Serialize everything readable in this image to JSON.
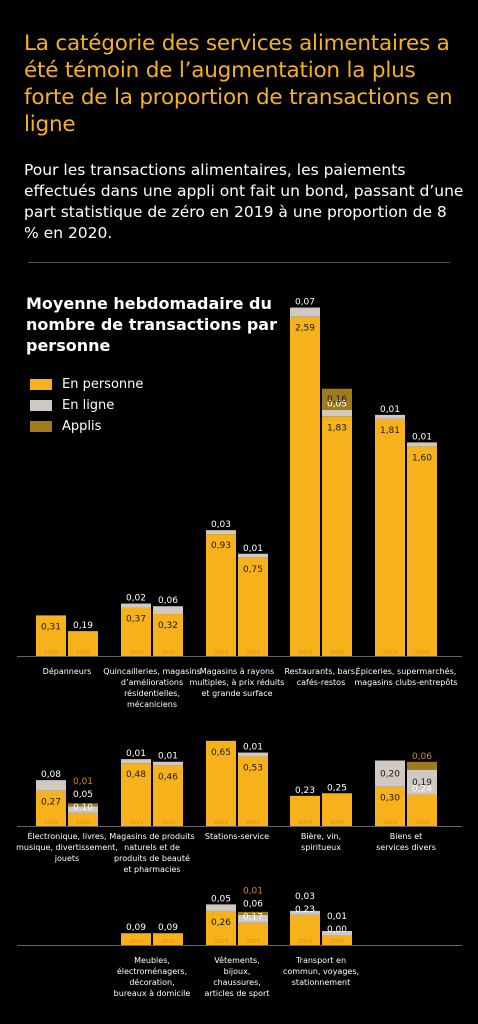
{
  "header": {
    "title": "La catégorie des services alimentaires a été témoin de l’augmentation la plus forte de la proportion de transactions en ligne",
    "subtitle": "Pour les transactions alimentaires, les paiements effectués dans une appli ont fait un bond, passant d’une part statistique de zéro en 2019 à une proportion de 8 % en 2020."
  },
  "colors": {
    "in_person": "#f7b21b",
    "online": "#cfc9c2",
    "apps": "#a17a1e",
    "year_label": "#d98d0f",
    "axis": "#666666"
  },
  "chart_data": {
    "type": "bar",
    "stacked": true,
    "title": "Moyenne hebdomadaire du nombre de transactions par personne",
    "legend": [
      {
        "key": "in_person",
        "label": "En personne"
      },
      {
        "key": "online",
        "label": "En ligne"
      },
      {
        "key": "apps",
        "label": "Applis"
      }
    ],
    "years": [
      "2019",
      "2020"
    ],
    "categories": [
      {
        "label": "Dépanneurs",
        "bars": [
          {
            "in_person": 0.31,
            "online": null,
            "apps": null
          },
          {
            "in_person": 0.19,
            "online": null,
            "apps": null
          }
        ]
      },
      {
        "label": "Quincailleries, magasins d’améliorations résidentielles, mécaniciens",
        "bars": [
          {
            "in_person": 0.37,
            "online": 0.02,
            "apps": null
          },
          {
            "in_person": 0.32,
            "online": 0.06,
            "apps": null
          }
        ]
      },
      {
        "label": "Magasins à rayons multiples, à prix réduits et grande surface",
        "bars": [
          {
            "in_person": 0.93,
            "online": 0.03,
            "apps": null
          },
          {
            "in_person": 0.75,
            "online": 0.01,
            "apps": null
          }
        ]
      },
      {
        "label": "Restaurants, bars, cafés-restos",
        "bars": [
          {
            "in_person": 2.59,
            "online": 0.07,
            "apps": null
          },
          {
            "in_person": 1.83,
            "online": 0.05,
            "apps": 0.16
          }
        ]
      },
      {
        "label": "Épiceries, supermarchés, magasins clubs-entrepôts",
        "bars": [
          {
            "in_person": 1.81,
            "online": 0.01,
            "apps": null
          },
          {
            "in_person": 1.6,
            "online": 0.01,
            "apps": null
          }
        ]
      },
      {
        "label": "Électronique, livres, musique, divertissement, jouets",
        "bars": [
          {
            "in_person": 0.27,
            "online": 0.08,
            "apps": null
          },
          {
            "in_person": 0.1,
            "online": 0.05,
            "apps": 0.01
          }
        ]
      },
      {
        "label": "Magasins de produits naturels et de produits de beauté et pharmacies",
        "bars": [
          {
            "in_person": 0.48,
            "online": 0.01,
            "apps": null
          },
          {
            "in_person": 0.46,
            "online": 0.01,
            "apps": null
          }
        ]
      },
      {
        "label": "Stations-service",
        "bars": [
          {
            "in_person": 0.65,
            "online": null,
            "apps": null
          },
          {
            "in_person": 0.53,
            "online": 0.01,
            "apps": null
          }
        ]
      },
      {
        "label": "Bière, vin, spiritueux",
        "bars": [
          {
            "in_person": 0.23,
            "online": null,
            "apps": null
          },
          {
            "in_person": 0.25,
            "online": null,
            "apps": null
          }
        ]
      },
      {
        "label": "Biens et services divers",
        "bars": [
          {
            "in_person": 0.3,
            "online": 0.2,
            "apps": null
          },
          {
            "in_person": 0.24,
            "online": 0.19,
            "apps": 0.06
          }
        ]
      },
      {
        "label": "Meubles, électroménagers, décoration, bureaux à domicile",
        "bars": [
          {
            "in_person": 0.09,
            "online": null,
            "apps": null
          },
          {
            "in_person": 0.09,
            "online": null,
            "apps": null
          }
        ]
      },
      {
        "label": "Vêtements, bijoux, chaussures, articles de sport",
        "bars": [
          {
            "in_person": 0.26,
            "online": 0.05,
            "apps": null
          },
          {
            "in_person": 0.17,
            "online": 0.06,
            "apps": 0.01
          }
        ]
      },
      {
        "label": "Transport en commun, voyages, stationnement",
        "bars": [
          {
            "in_person": 0.23,
            "online": 0.03,
            "apps": null
          },
          {
            "in_person": 0.0,
            "online": 0.01,
            "apps": null
          }
        ]
      }
    ]
  }
}
